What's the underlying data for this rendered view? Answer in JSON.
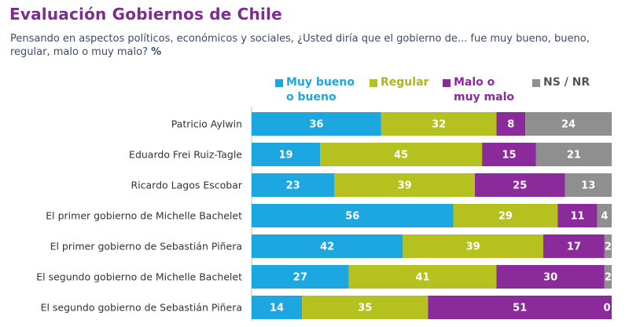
{
  "header": {
    "title": "Evaluación Gobiernos de Chile",
    "subtitle": "Pensando en aspectos políticos, económicos y sociales, ¿Usted diría que el gobierno de... fue muy bueno, bueno, regular, malo o muy malo?",
    "subtitle_unit": "%"
  },
  "legend": {
    "items": [
      {
        "line1": "Muy bueno",
        "line2": "o bueno"
      },
      {
        "line1": "Regular",
        "line2": ""
      },
      {
        "line1": "Malo o",
        "line2": "muy malo"
      },
      {
        "line1": "NS / NR",
        "line2": ""
      }
    ]
  },
  "chart_data": {
    "type": "bar",
    "orientation": "horizontal",
    "stacked": true,
    "title": "Evaluación Gobiernos de Chile",
    "legend_position": "top",
    "categories": [
      "Patricio Aylwin",
      "Eduardo Frei Ruiz-Tagle",
      "Ricardo Lagos Escobar",
      "El primer gobierno de Michelle Bachelet",
      "El primer gobierno de Sebastián Piñera",
      "El segundo gobierno de Michelle Bachelet",
      "El segundo gobierno de Sebastián Piñera"
    ],
    "series": [
      {
        "name": "Muy bueno o bueno",
        "color": "#1ca7e0",
        "values": [
          36,
          19,
          23,
          56,
          42,
          27,
          14
        ]
      },
      {
        "name": "Regular",
        "color": "#b5c11f",
        "values": [
          32,
          45,
          39,
          29,
          39,
          41,
          35
        ]
      },
      {
        "name": "Malo o muy malo",
        "color": "#8b2a9b",
        "values": [
          8,
          15,
          25,
          11,
          17,
          30,
          51
        ]
      },
      {
        "name": "NS / NR",
        "color": "#8f8f8f",
        "values": [
          24,
          21,
          13,
          4,
          2,
          2,
          0
        ]
      }
    ]
  }
}
